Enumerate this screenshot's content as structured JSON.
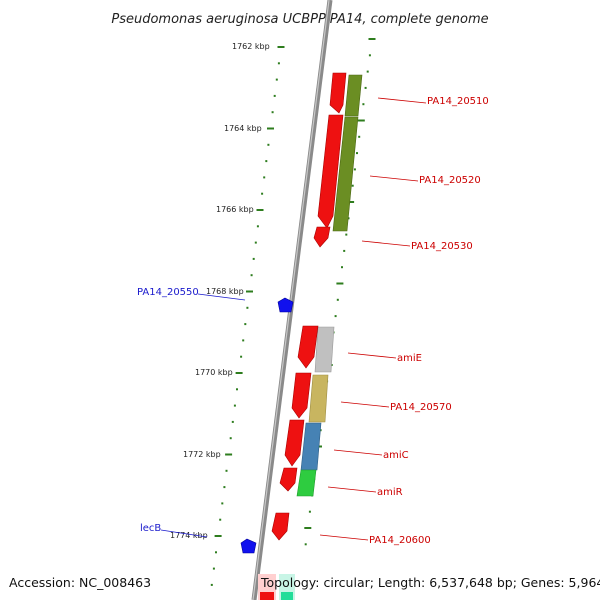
{
  "title": "Pseudomonas aeruginosa UCBPP-PA14, complete genome",
  "accession_label": "Accession: NC_008463",
  "footer_stats": "Topology: circular; Length: 6,537,648 bp; Genes: 5,964",
  "colors": {
    "backbone": "#888888",
    "tick": "#2e7d1e",
    "red_gene": "#ee1111",
    "red_label": "#cc0000",
    "blue_gene": "#1111ee",
    "blue_label": "#1a1acc"
  },
  "scale_labels": [
    "1762 kbp",
    "1764 kbp",
    "1766 kbp",
    "1768 kbp",
    "1770 kbp",
    "1772 kbp",
    "1774 kbp"
  ],
  "genes_right": [
    {
      "label": "PA14_20510",
      "cog_color": "#6b8e23"
    },
    {
      "label": "PA14_20520",
      "cog_color": "#6b8e23"
    },
    {
      "label": "PA14_20530",
      "cog_color": ""
    },
    {
      "label": "amiE",
      "cog_color": "#b8b8b8"
    },
    {
      "label": "PA14_20570",
      "cog_color": "#c8b560"
    },
    {
      "label": "amiC",
      "cog_color": "#4682b4"
    },
    {
      "label": "amiR",
      "cog_color": "#2ecc40"
    },
    {
      "label": "PA14_20600",
      "cog_color": ""
    }
  ],
  "genes_left": [
    {
      "label": "PA14_20550"
    },
    {
      "label": "lecB"
    }
  ]
}
